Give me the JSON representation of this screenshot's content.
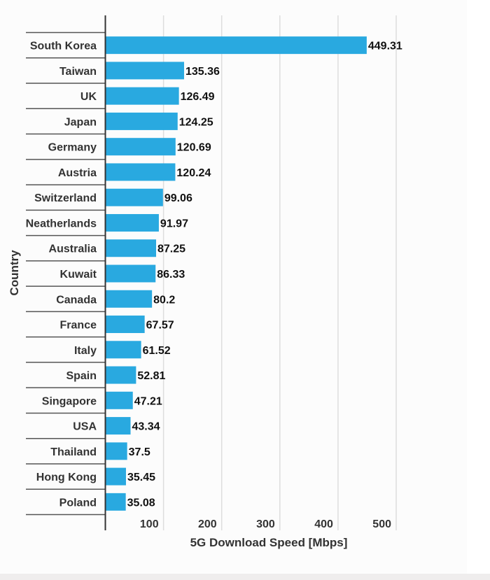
{
  "chart_data": {
    "type": "bar",
    "orientation": "horizontal",
    "title": "",
    "xlabel": "5G Download Speed [Mbps]",
    "ylabel": "Country",
    "xlim": [
      0,
      500
    ],
    "xticks": [
      100,
      200,
      300,
      400,
      500
    ],
    "grid": true,
    "bar_color": "#29a9e0",
    "categories": [
      "South Korea",
      "Taiwan",
      "UK",
      "Japan",
      "Germany",
      "Austria",
      "Switzerland",
      "Neatherlands",
      "Australia",
      "Kuwait",
      "Canada",
      "France",
      "Italy",
      "Spain",
      "Singapore",
      "USA",
      "Thailand",
      "Hong Kong",
      "Poland"
    ],
    "values": [
      449.31,
      135.36,
      126.49,
      124.25,
      120.69,
      120.24,
      99.06,
      91.97,
      87.25,
      86.33,
      80.2,
      67.57,
      61.52,
      52.81,
      47.21,
      43.34,
      37.5,
      35.45,
      35.08
    ],
    "value_labels": [
      "449.31",
      "135.36",
      "126.49",
      "124.25",
      "120.69",
      "120.24",
      "99.06",
      "91.97",
      "87.25",
      "86.33",
      "80.2",
      "67.57",
      "61.52",
      "52.81",
      "47.21",
      "43.34",
      "37.5",
      "35.45",
      "35.08"
    ]
  }
}
